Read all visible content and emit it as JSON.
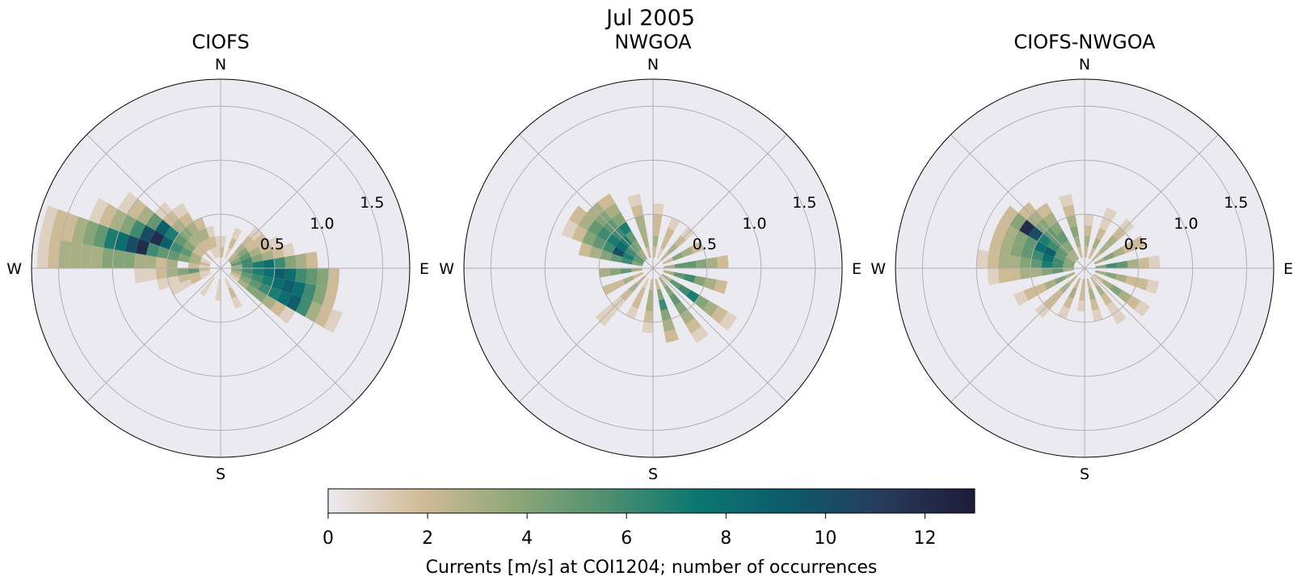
{
  "figure": {
    "suptitle": "Jul 2005",
    "colorbar_label": "Currents [m/s] at COI1204; number of occurrences"
  },
  "colors": {
    "background": "#ffffff",
    "polar_face": "#eceaf1",
    "grid": "#b0b0b0",
    "colormap": [
      "#eceaf1",
      "#d2bb98",
      "#8fa878",
      "#4f9070",
      "#0b7770",
      "#0d5a6a",
      "#263c5a",
      "#1e1b3a"
    ]
  },
  "chart_data": [
    {
      "type": "polar-histogram",
      "title": "CIOFS",
      "compass_labels": [
        "N",
        "E",
        "S",
        "W"
      ],
      "radial_ticks": [
        0.5,
        1.0,
        1.5
      ],
      "radial_tick_labels": [
        "0.5",
        "1.0",
        "1.5"
      ],
      "rmax": 1.75,
      "direction_bins": 36,
      "speed_bin_width": 0.1,
      "color_range": [
        0,
        13
      ],
      "sectors": [
        {
          "dir": 275,
          "counts": [
            0,
            1,
            2,
            0,
            3,
            2,
            3,
            3,
            4,
            4,
            4,
            3,
            3,
            3,
            3,
            2,
            1
          ]
        },
        {
          "dir": 285,
          "counts": [
            0,
            2,
            3,
            4,
            5,
            5,
            6,
            12,
            10,
            8,
            7,
            5,
            4,
            3,
            2,
            2,
            1
          ]
        },
        {
          "dir": 295,
          "counts": [
            0,
            1,
            3,
            5,
            6,
            9,
            12,
            10,
            6,
            4,
            3,
            2,
            1
          ]
        },
        {
          "dir": 305,
          "counts": [
            0,
            0,
            2,
            4,
            5,
            7,
            9,
            5,
            3,
            2,
            1
          ]
        },
        {
          "dir": 315,
          "counts": [
            0,
            1,
            2,
            3,
            4,
            3,
            2,
            1
          ]
        },
        {
          "dir": 325,
          "counts": [
            0,
            0,
            2,
            3,
            3,
            2,
            1
          ]
        },
        {
          "dir": 335,
          "counts": [
            0,
            1,
            2,
            3,
            2
          ]
        },
        {
          "dir": 345,
          "counts": [
            0,
            1,
            2,
            1
          ]
        },
        {
          "dir": 355,
          "counts": [
            0,
            1,
            1
          ]
        },
        {
          "dir": 5,
          "counts": [
            0,
            2,
            1
          ]
        },
        {
          "dir": 25,
          "counts": [
            0,
            1,
            2,
            1
          ]
        },
        {
          "dir": 45,
          "counts": [
            0,
            2,
            3,
            2,
            1
          ]
        },
        {
          "dir": 55,
          "counts": [
            0,
            3,
            4,
            2,
            2
          ]
        },
        {
          "dir": 65,
          "counts": [
            0,
            4,
            5,
            3,
            2,
            1
          ]
        },
        {
          "dir": 75,
          "counts": [
            0,
            5,
            6,
            4,
            3,
            2,
            1
          ]
        },
        {
          "dir": 85,
          "counts": [
            0,
            3,
            6,
            7,
            8,
            6,
            4,
            3,
            2
          ]
        },
        {
          "dir": 95,
          "counts": [
            0,
            4,
            6,
            7,
            8,
            9,
            8,
            6,
            5,
            4,
            2
          ]
        },
        {
          "dir": 105,
          "counts": [
            0,
            3,
            5,
            6,
            7,
            8,
            9,
            8,
            6,
            4,
            2
          ]
        },
        {
          "dir": 115,
          "counts": [
            0,
            2,
            4,
            5,
            6,
            7,
            8,
            9,
            6,
            3,
            2,
            1
          ]
        },
        {
          "dir": 125,
          "counts": [
            0,
            1,
            3,
            4,
            4,
            3,
            2,
            1
          ]
        },
        {
          "dir": 155,
          "counts": [
            0,
            1,
            2,
            1
          ]
        },
        {
          "dir": 185,
          "counts": [
            0,
            1,
            1
          ]
        },
        {
          "dir": 215,
          "counts": [
            0,
            1,
            1
          ]
        },
        {
          "dir": 245,
          "counts": [
            0,
            1,
            2,
            1,
            1
          ]
        },
        {
          "dir": 255,
          "counts": [
            0,
            1,
            2,
            2,
            1,
            1
          ]
        },
        {
          "dir": 265,
          "counts": [
            0,
            2,
            5,
            4,
            3,
            2,
            1,
            1
          ]
        }
      ]
    },
    {
      "type": "polar-histogram",
      "title": "NWGOA",
      "compass_labels": [
        "N",
        "E",
        "S",
        "W"
      ],
      "radial_ticks": [
        0.5,
        1.0,
        1.5
      ],
      "radial_tick_labels": [
        "0.5",
        "1.0",
        "1.5"
      ],
      "rmax": 1.75,
      "direction_bins": 36,
      "speed_bin_width": 0.1,
      "color_range": [
        0,
        13
      ],
      "sectors": [
        {
          "dir": 5,
          "counts": [
            0,
            2,
            3,
            2,
            2,
            1
          ]
        },
        {
          "dir": 25,
          "counts": [
            0,
            1,
            2,
            2,
            1
          ]
        },
        {
          "dir": 45,
          "counts": [
            0,
            2,
            3,
            2,
            1
          ]
        },
        {
          "dir": 65,
          "counts": [
            0,
            2,
            4,
            3,
            2
          ]
        },
        {
          "dir": 85,
          "counts": [
            0,
            3,
            5,
            5,
            4,
            3,
            2
          ]
        },
        {
          "dir": 105,
          "counts": [
            0,
            3,
            5,
            6,
            4,
            3,
            2
          ]
        },
        {
          "dir": 125,
          "counts": [
            0,
            3,
            5,
            6,
            7,
            4,
            3,
            2,
            1
          ]
        },
        {
          "dir": 145,
          "counts": [
            0,
            3,
            4,
            5,
            4,
            3,
            2,
            1
          ]
        },
        {
          "dir": 165,
          "counts": [
            0,
            2,
            4,
            6,
            4,
            3,
            2
          ]
        },
        {
          "dir": 185,
          "counts": [
            0,
            2,
            3,
            3,
            2,
            1
          ]
        },
        {
          "dir": 205,
          "counts": [
            0,
            1,
            2,
            2,
            1
          ]
        },
        {
          "dir": 225,
          "counts": [
            0,
            2,
            3,
            2,
            1,
            1,
            1
          ]
        },
        {
          "dir": 245,
          "counts": [
            0,
            2,
            3,
            2,
            2
          ]
        },
        {
          "dir": 265,
          "counts": [
            0,
            3,
            5,
            4,
            3
          ]
        },
        {
          "dir": 285,
          "counts": [
            0,
            4,
            6,
            5,
            4,
            3,
            2
          ]
        },
        {
          "dir": 295,
          "counts": [
            0,
            5,
            7,
            10,
            6,
            5,
            4,
            2,
            1
          ]
        },
        {
          "dir": 305,
          "counts": [
            0,
            5,
            6,
            8,
            7,
            6,
            5,
            3,
            2
          ]
        },
        {
          "dir": 315,
          "counts": [
            0,
            4,
            5,
            7,
            6,
            5,
            4,
            3
          ]
        },
        {
          "dir": 325,
          "counts": [
            0,
            3,
            4,
            5,
            7,
            4,
            3,
            2
          ]
        },
        {
          "dir": 345,
          "counts": [
            0,
            2,
            3,
            3,
            3,
            2,
            1
          ]
        }
      ]
    },
    {
      "type": "polar-histogram",
      "title": "CIOFS-NWGOA",
      "compass_labels": [
        "N",
        "E",
        "S",
        "W"
      ],
      "radial_ticks": [
        0.5,
        1.0,
        1.5
      ],
      "radial_tick_labels": [
        "0.5",
        "1.0",
        "1.5"
      ],
      "rmax": 1.75,
      "direction_bins": 36,
      "speed_bin_width": 0.1,
      "color_range": [
        0,
        13
      ],
      "sectors": [
        {
          "dir": 5,
          "counts": [
            0,
            2,
            3,
            2,
            1
          ]
        },
        {
          "dir": 25,
          "counts": [
            0,
            2,
            3,
            2,
            1,
            1
          ]
        },
        {
          "dir": 45,
          "counts": [
            0,
            2,
            3,
            3,
            2,
            1
          ]
        },
        {
          "dir": 65,
          "counts": [
            0,
            3,
            4,
            3,
            2,
            2
          ]
        },
        {
          "dir": 85,
          "counts": [
            0,
            4,
            6,
            5,
            3,
            2,
            1
          ]
        },
        {
          "dir": 105,
          "counts": [
            0,
            3,
            4,
            3,
            2,
            2,
            1
          ]
        },
        {
          "dir": 125,
          "counts": [
            0,
            2,
            3,
            4,
            3,
            2,
            1
          ]
        },
        {
          "dir": 145,
          "counts": [
            0,
            2,
            3,
            2,
            1,
            1
          ]
        },
        {
          "dir": 165,
          "counts": [
            0,
            2,
            3,
            2,
            1
          ]
        },
        {
          "dir": 185,
          "counts": [
            0,
            2,
            2,
            1
          ]
        },
        {
          "dir": 205,
          "counts": [
            0,
            2,
            3,
            2,
            1
          ]
        },
        {
          "dir": 225,
          "counts": [
            0,
            2,
            3,
            2,
            2,
            1
          ]
        },
        {
          "dir": 245,
          "counts": [
            0,
            3,
            4,
            3,
            2,
            2,
            1
          ]
        },
        {
          "dir": 265,
          "counts": [
            0,
            3,
            5,
            4,
            3,
            3,
            2,
            2,
            1
          ]
        },
        {
          "dir": 275,
          "counts": [
            0,
            4,
            6,
            7,
            5,
            4,
            3,
            3,
            2,
            1
          ]
        },
        {
          "dir": 285,
          "counts": [
            0,
            4,
            6,
            8,
            6,
            5,
            4,
            3,
            2
          ]
        },
        {
          "dir": 295,
          "counts": [
            0,
            4,
            5,
            9,
            8,
            5,
            4,
            3,
            2
          ]
        },
        {
          "dir": 305,
          "counts": [
            0,
            3,
            5,
            6,
            7,
            10,
            12,
            4,
            2
          ]
        },
        {
          "dir": 315,
          "counts": [
            0,
            3,
            4,
            5,
            5,
            4,
            3,
            2
          ]
        },
        {
          "dir": 325,
          "counts": [
            0,
            3,
            4,
            5,
            4,
            3,
            2
          ]
        },
        {
          "dir": 345,
          "counts": [
            0,
            2,
            3,
            4,
            3,
            2,
            1
          ]
        }
      ]
    }
  ],
  "colorbar": {
    "min": 0,
    "max": 13,
    "ticks": [
      0,
      2,
      4,
      6,
      8,
      10,
      12
    ],
    "tick_labels": [
      "0",
      "2",
      "4",
      "6",
      "8",
      "10",
      "12"
    ]
  }
}
